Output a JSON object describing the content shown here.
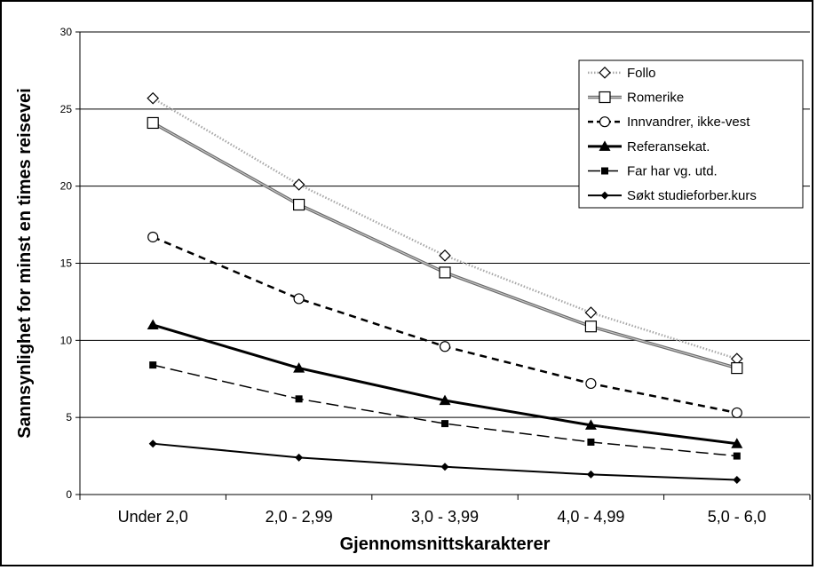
{
  "chart_data": {
    "type": "line",
    "title": "",
    "xlabel": "Gjennomsnittskarakterer",
    "ylabel": "Sannsynlighet for minst en times reisevei",
    "ylim": [
      0,
      30
    ],
    "yticks": [
      0,
      5,
      10,
      15,
      20,
      25,
      30
    ],
    "grid": "horizontal",
    "legend_position": "top-right",
    "categories": [
      "Under 2,0",
      "2,0 - 2,99",
      "3,0 - 3,99",
      "4,0 - 4,99",
      "5,0 - 6,0"
    ],
    "series": [
      {
        "name": "Follo",
        "values": [
          25.7,
          20.1,
          15.5,
          11.8,
          8.8
        ],
        "marker": "diamond-open",
        "line": "light-dotted",
        "color": "#9a9a9a"
      },
      {
        "name": "Romerike",
        "values": [
          24.1,
          18.8,
          14.4,
          10.9,
          8.2
        ],
        "marker": "square-open",
        "line": "gray-double",
        "color": "#6e6e6e"
      },
      {
        "name": "Innvandrer, ikke-vest",
        "values": [
          16.7,
          12.7,
          9.6,
          7.2,
          5.3
        ],
        "marker": "circle-open",
        "line": "dashed",
        "color": "#000000"
      },
      {
        "name": "Referansekat.",
        "values": [
          11.0,
          8.2,
          6.1,
          4.5,
          3.3
        ],
        "marker": "triangle-filled",
        "line": "thick-solid",
        "color": "#000000"
      },
      {
        "name": "Far har vg. utd.",
        "values": [
          8.4,
          6.2,
          4.6,
          3.4,
          2.5
        ],
        "marker": "square-filled",
        "line": "long-dash",
        "color": "#000000"
      },
      {
        "name": "Søkt studieforber.kurs",
        "values": [
          3.3,
          2.4,
          1.8,
          1.3,
          0.95
        ],
        "marker": "diamond-filled",
        "line": "solid",
        "color": "#000000"
      }
    ]
  }
}
